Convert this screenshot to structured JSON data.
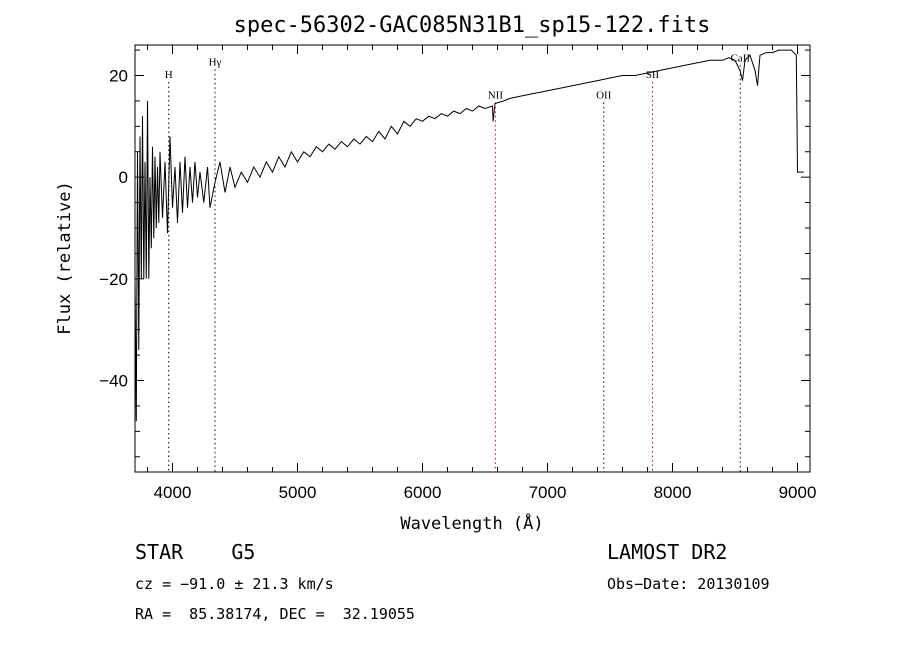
{
  "chart_data": {
    "type": "line",
    "title": "spec-56302-GAC085N31B1_sp15-122.fits",
    "xlabel": "Wavelength (Å)",
    "ylabel": "Flux (relative)",
    "xlim": [
      3700,
      9100
    ],
    "ylim": [
      -58,
      26
    ],
    "xticks": [
      4000,
      5000,
      6000,
      7000,
      8000,
      9000
    ],
    "yticks": [
      -40,
      -20,
      0,
      20
    ],
    "ytick_labels": [
      "−40",
      "−20",
      "0",
      "20"
    ],
    "grid": false,
    "series": [
      {
        "points": [
          [
            3700,
            -20
          ],
          [
            3710,
            -48
          ],
          [
            3720,
            5
          ],
          [
            3730,
            -34
          ],
          [
            3740,
            8
          ],
          [
            3750,
            -20
          ],
          [
            3760,
            12
          ],
          [
            3770,
            -20
          ],
          [
            3780,
            3
          ],
          [
            3790,
            -20
          ],
          [
            3800,
            15
          ],
          [
            3810,
            -20
          ],
          [
            3820,
            0
          ],
          [
            3830,
            -14
          ],
          [
            3840,
            6
          ],
          [
            3850,
            -12
          ],
          [
            3860,
            4
          ],
          [
            3870,
            -10
          ],
          [
            3880,
            2
          ],
          [
            3890,
            -9
          ],
          [
            3900,
            5
          ],
          [
            3920,
            -8
          ],
          [
            3940,
            3
          ],
          [
            3960,
            -11
          ],
          [
            3980,
            8
          ],
          [
            4000,
            -6
          ],
          [
            4020,
            2
          ],
          [
            4040,
            -9
          ],
          [
            4060,
            3
          ],
          [
            4080,
            -7
          ],
          [
            4100,
            4
          ],
          [
            4120,
            -6
          ],
          [
            4140,
            2
          ],
          [
            4160,
            -5
          ],
          [
            4180,
            3
          ],
          [
            4200,
            -4
          ],
          [
            4220,
            1
          ],
          [
            4250,
            -5
          ],
          [
            4280,
            2
          ],
          [
            4300,
            -6
          ],
          [
            4340,
            -1
          ],
          [
            4380,
            3
          ],
          [
            4420,
            -3
          ],
          [
            4460,
            2
          ],
          [
            4500,
            -2
          ],
          [
            4550,
            1
          ],
          [
            4600,
            -1
          ],
          [
            4650,
            2
          ],
          [
            4700,
            0
          ],
          [
            4750,
            3
          ],
          [
            4800,
            1
          ],
          [
            4850,
            4
          ],
          [
            4900,
            2
          ],
          [
            4950,
            5
          ],
          [
            5000,
            3
          ],
          [
            5050,
            5
          ],
          [
            5100,
            4
          ],
          [
            5150,
            6
          ],
          [
            5200,
            5
          ],
          [
            5250,
            6.5
          ],
          [
            5300,
            5.5
          ],
          [
            5350,
            7
          ],
          [
            5400,
            6
          ],
          [
            5450,
            7.5
          ],
          [
            5500,
            6.5
          ],
          [
            5550,
            8
          ],
          [
            5600,
            7
          ],
          [
            5650,
            9
          ],
          [
            5700,
            7.5
          ],
          [
            5750,
            10
          ],
          [
            5800,
            8.5
          ],
          [
            5850,
            11
          ],
          [
            5900,
            10
          ],
          [
            5950,
            11.5
          ],
          [
            6000,
            11
          ],
          [
            6050,
            12
          ],
          [
            6100,
            11.5
          ],
          [
            6150,
            12.5
          ],
          [
            6200,
            12
          ],
          [
            6250,
            13
          ],
          [
            6300,
            12.5
          ],
          [
            6350,
            13.5
          ],
          [
            6400,
            13
          ],
          [
            6450,
            14
          ],
          [
            6500,
            13.5
          ],
          [
            6560,
            14
          ],
          [
            6565,
            11
          ],
          [
            6580,
            14.5
          ],
          [
            6650,
            15
          ],
          [
            6700,
            15.5
          ],
          [
            6800,
            16
          ],
          [
            6900,
            16.5
          ],
          [
            7000,
            17
          ],
          [
            7100,
            17.5
          ],
          [
            7200,
            18
          ],
          [
            7300,
            18.5
          ],
          [
            7400,
            19
          ],
          [
            7500,
            19.5
          ],
          [
            7600,
            20
          ],
          [
            7700,
            20
          ],
          [
            7800,
            20.5
          ],
          [
            7900,
            21
          ],
          [
            8000,
            21.5
          ],
          [
            8100,
            22
          ],
          [
            8200,
            22.5
          ],
          [
            8300,
            23
          ],
          [
            8400,
            23
          ],
          [
            8450,
            23.5
          ],
          [
            8500,
            23
          ],
          [
            8540,
            21
          ],
          [
            8560,
            19
          ],
          [
            8580,
            23
          ],
          [
            8620,
            24
          ],
          [
            8660,
            21
          ],
          [
            8680,
            18
          ],
          [
            8700,
            24
          ],
          [
            8750,
            24.5
          ],
          [
            8800,
            24.5
          ],
          [
            8850,
            25
          ],
          [
            8900,
            25
          ],
          [
            8950,
            25
          ],
          [
            8990,
            24
          ],
          [
            9000,
            1
          ],
          [
            9050,
            1
          ]
        ]
      }
    ],
    "line_markers": [
      {
        "label": "H",
        "x": 3970,
        "label_y": 19.5,
        "color": "#000000"
      },
      {
        "label": "Hγ",
        "x": 4340,
        "label_y": 22,
        "color": "#000000"
      },
      {
        "label": "NII",
        "x": 6583,
        "label_y": 15.5,
        "color": "#cc0000"
      },
      {
        "label": "OII",
        "x": 7450,
        "label_y": 15.5,
        "color": "#000000"
      },
      {
        "label": "SII",
        "x": 7840,
        "label_y": 19.5,
        "color": "#cc0000"
      },
      {
        "label": "CaII",
        "x": 8542,
        "label_y": 22.8,
        "color": "#000000"
      }
    ]
  },
  "info": {
    "star_class": "STAR    G5",
    "survey": "LAMOST DR2",
    "cz": "cz = −91.0 ± 21.3 km/s",
    "obs_date": "Obs−Date: 20130109",
    "coords": "RA =  85.38174, DEC =  32.19055"
  }
}
